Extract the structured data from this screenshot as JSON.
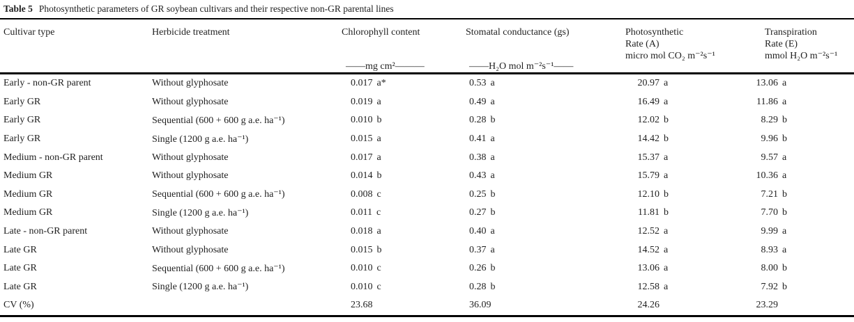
{
  "title": {
    "label": "Table 5",
    "text": "Photosynthetic parameters of GR soybean cultivars and their respective non-GR parental lines"
  },
  "columns": [
    {
      "name": "Cultivar type",
      "unit": ""
    },
    {
      "name": "Herbicide treatment",
      "unit": ""
    },
    {
      "name": "Chlorophyll content",
      "unit": "——mg cm²———"
    },
    {
      "name": "Stomatal conductance (gs)",
      "unit": "——H₂O mol m⁻²s⁻¹——"
    },
    {
      "name": "Photosynthetic",
      "name2": "Rate (A)",
      "unit": "micro mol CO₂ m⁻²s⁻¹"
    },
    {
      "name": "Transpiration",
      "name2": "Rate (E)",
      "unit": "mmol H₂O m⁻²s⁻¹"
    }
  ],
  "rows": [
    {
      "cultivar": "Early - non-GR parent",
      "treatment": "Without glyphosate",
      "chl": {
        "num": "0.017",
        "sig": "a*"
      },
      "gs": {
        "num": "0.53",
        "sig": "a"
      },
      "a": {
        "num": "20.97",
        "sig": "a"
      },
      "e": {
        "num": "13.06",
        "sig": "a"
      }
    },
    {
      "cultivar": "Early GR",
      "treatment": "Without glyphosate",
      "chl": {
        "num": "0.019",
        "sig": "a"
      },
      "gs": {
        "num": "0.49",
        "sig": "a"
      },
      "a": {
        "num": "16.49",
        "sig": "a"
      },
      "e": {
        "num": "11.86",
        "sig": "a"
      }
    },
    {
      "cultivar": "Early GR",
      "treatment": "Sequential (600 + 600 g a.e. ha⁻¹)",
      "chl": {
        "num": "0.010",
        "sig": "b"
      },
      "gs": {
        "num": "0.28",
        "sig": "b"
      },
      "a": {
        "num": "12.02",
        "sig": "b"
      },
      "e": {
        "num": "8.29",
        "sig": "b"
      }
    },
    {
      "cultivar": "Early GR",
      "treatment": "Single (1200 g a.e. ha⁻¹)",
      "chl": {
        "num": "0.015",
        "sig": "a"
      },
      "gs": {
        "num": "0.41",
        "sig": "a"
      },
      "a": {
        "num": "14.42",
        "sig": "b"
      },
      "e": {
        "num": "9.96",
        "sig": "b"
      }
    },
    {
      "cultivar": "Medium - non-GR parent",
      "treatment": "Without glyphosate",
      "chl": {
        "num": "0.017",
        "sig": "a"
      },
      "gs": {
        "num": "0.38",
        "sig": "a"
      },
      "a": {
        "num": "15.37",
        "sig": "a"
      },
      "e": {
        "num": "9.57",
        "sig": "a"
      }
    },
    {
      "cultivar": "Medium GR",
      "treatment": "Without glyphosate",
      "chl": {
        "num": "0.014",
        "sig": "b"
      },
      "gs": {
        "num": "0.43",
        "sig": "a"
      },
      "a": {
        "num": "15.79",
        "sig": "a"
      },
      "e": {
        "num": "10.36",
        "sig": "a"
      }
    },
    {
      "cultivar": "Medium GR",
      "treatment": "Sequential (600 + 600 g a.e. ha⁻¹)",
      "chl": {
        "num": "0.008",
        "sig": "c"
      },
      "gs": {
        "num": "0.25",
        "sig": "b"
      },
      "a": {
        "num": "12.10",
        "sig": "b"
      },
      "e": {
        "num": "7.21",
        "sig": "b"
      }
    },
    {
      "cultivar": "Medium GR",
      "treatment": "Single (1200 g a.e. ha⁻¹)",
      "chl": {
        "num": "0.011",
        "sig": "c"
      },
      "gs": {
        "num": "0.27",
        "sig": "b"
      },
      "a": {
        "num": "11.81",
        "sig": "b"
      },
      "e": {
        "num": "7.70",
        "sig": "b"
      }
    },
    {
      "cultivar": "Late - non-GR parent",
      "treatment": "Without glyphosate",
      "chl": {
        "num": "0.018",
        "sig": "a"
      },
      "gs": {
        "num": "0.40",
        "sig": "a"
      },
      "a": {
        "num": "12.52",
        "sig": "a"
      },
      "e": {
        "num": "9.99",
        "sig": "a"
      }
    },
    {
      "cultivar": "Late GR",
      "treatment": "Without glyphosate",
      "chl": {
        "num": "0.015",
        "sig": "b"
      },
      "gs": {
        "num": "0.37",
        "sig": "a"
      },
      "a": {
        "num": "14.52",
        "sig": "a"
      },
      "e": {
        "num": "8.93",
        "sig": "a"
      }
    },
    {
      "cultivar": "Late GR",
      "treatment": "Sequential (600 + 600 g a.e. ha⁻¹)",
      "chl": {
        "num": "0.010",
        "sig": "c"
      },
      "gs": {
        "num": "0.26",
        "sig": "b"
      },
      "a": {
        "num": "13.06",
        "sig": "a"
      },
      "e": {
        "num": "8.00",
        "sig": "b"
      }
    },
    {
      "cultivar": "Late GR",
      "treatment": "Single (1200 g a.e. ha⁻¹)",
      "chl": {
        "num": "0.010",
        "sig": "c"
      },
      "gs": {
        "num": "0.28",
        "sig": "b"
      },
      "a": {
        "num": "12.58",
        "sig": "a"
      },
      "e": {
        "num": "7.92",
        "sig": "b"
      }
    }
  ],
  "cv": {
    "label": "CV (%)",
    "chl": "23.68",
    "gs": "36.09",
    "a": "24.26",
    "e": "23.29"
  }
}
